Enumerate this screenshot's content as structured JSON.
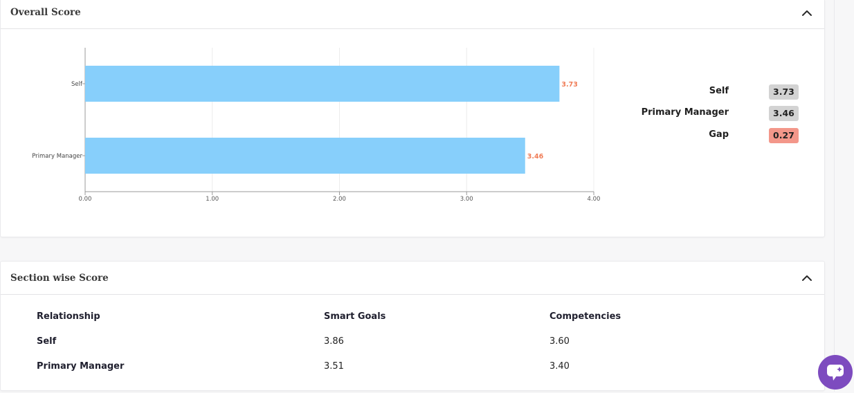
{
  "overall": {
    "title": "Overall Score",
    "collapse_icon": "chevron-up-icon",
    "summary": [
      {
        "label": "Self",
        "value": "3.73",
        "badge_color": "#d3d3d3"
      },
      {
        "label": "Primary Manager",
        "value": "3.46",
        "badge_color": "#d3d3d3"
      },
      {
        "label": "Gap",
        "value": "0.27",
        "badge_color": "#f3978a"
      }
    ]
  },
  "chart_data": {
    "type": "bar",
    "orientation": "horizontal",
    "categories": [
      "Self",
      "Primary Manager"
    ],
    "values": [
      3.73,
      3.46
    ],
    "value_labels": [
      "3.73",
      "3.46"
    ],
    "xlim": [
      0,
      4
    ],
    "xticks": [
      "0.00",
      "1.00",
      "2.00",
      "3.00",
      "4.00"
    ],
    "title": "",
    "xlabel": "",
    "ylabel": "",
    "grid": "vertical",
    "bar_color": "#87cffb",
    "label_color": "#f07c56"
  },
  "section": {
    "title": "Section wise Score",
    "collapse_icon": "chevron-up-icon",
    "columns": [
      "Relationship",
      "Smart Goals",
      "Competencies"
    ],
    "rows": [
      {
        "relationship": "Self",
        "smart_goals": "3.86",
        "competencies": "3.60"
      },
      {
        "relationship": "Primary Manager",
        "smart_goals": "3.51",
        "competencies": "3.40"
      }
    ]
  },
  "chat": {
    "icon": "chat-support-icon",
    "color": "#7d4bbf"
  }
}
